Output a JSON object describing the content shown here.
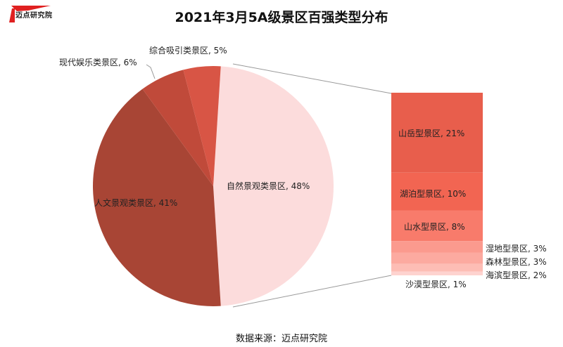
{
  "header": {
    "logo_text": "迈点研究院",
    "title": "2021年3月5A级景区百强类型分布"
  },
  "footer": {
    "source": "数据来源：迈点研究院"
  },
  "labels": {
    "ziran": "自然景观类景区, 48%",
    "renwen": "人文景观类景区, 41%",
    "xiandai": "现代娱乐类景区, 6%",
    "zonghe": "综合吸引类景区, 5%",
    "shanyue": "山岳型景区, 21%",
    "hubo": "湖泊型景区, 10%",
    "shanshui": "山水型景区, 8%",
    "shidi": "湿地型景区, 3%",
    "senlin": "森林型景区, 3%",
    "haibin": "海滨型景区, 2%",
    "shamo": "沙漠型景区, 1%"
  },
  "chart_data": {
    "type": "pie",
    "subtype": "bar-of-pie",
    "title": "2021年3月5A级景区百强类型分布",
    "pie": {
      "categories": [
        "自然景观类景区",
        "人文景观类景区",
        "现代娱乐类景区",
        "综合吸引类景区"
      ],
      "values": [
        48,
        41,
        6,
        5
      ],
      "unit": "%",
      "colors": [
        "#fcdcdc",
        "#a84535",
        "#c04a3a",
        "#d85545"
      ]
    },
    "bar_breakdown": {
      "parent": "自然景观类景区",
      "categories": [
        "山岳型景区",
        "湖泊型景区",
        "山水型景区",
        "湿地型景区",
        "森林型景区",
        "海滨型景区",
        "沙漠型景区"
      ],
      "values": [
        21,
        10,
        8,
        3,
        3,
        2,
        1
      ],
      "unit": "%",
      "colors": [
        "#e85e4c",
        "#f26552",
        "#f87b6b",
        "#fb9a8e",
        "#fcaaa0",
        "#fdbdb5",
        "#fed3cf"
      ]
    },
    "source": "数据来源：迈点研究院",
    "legend": "none (data labels)"
  }
}
